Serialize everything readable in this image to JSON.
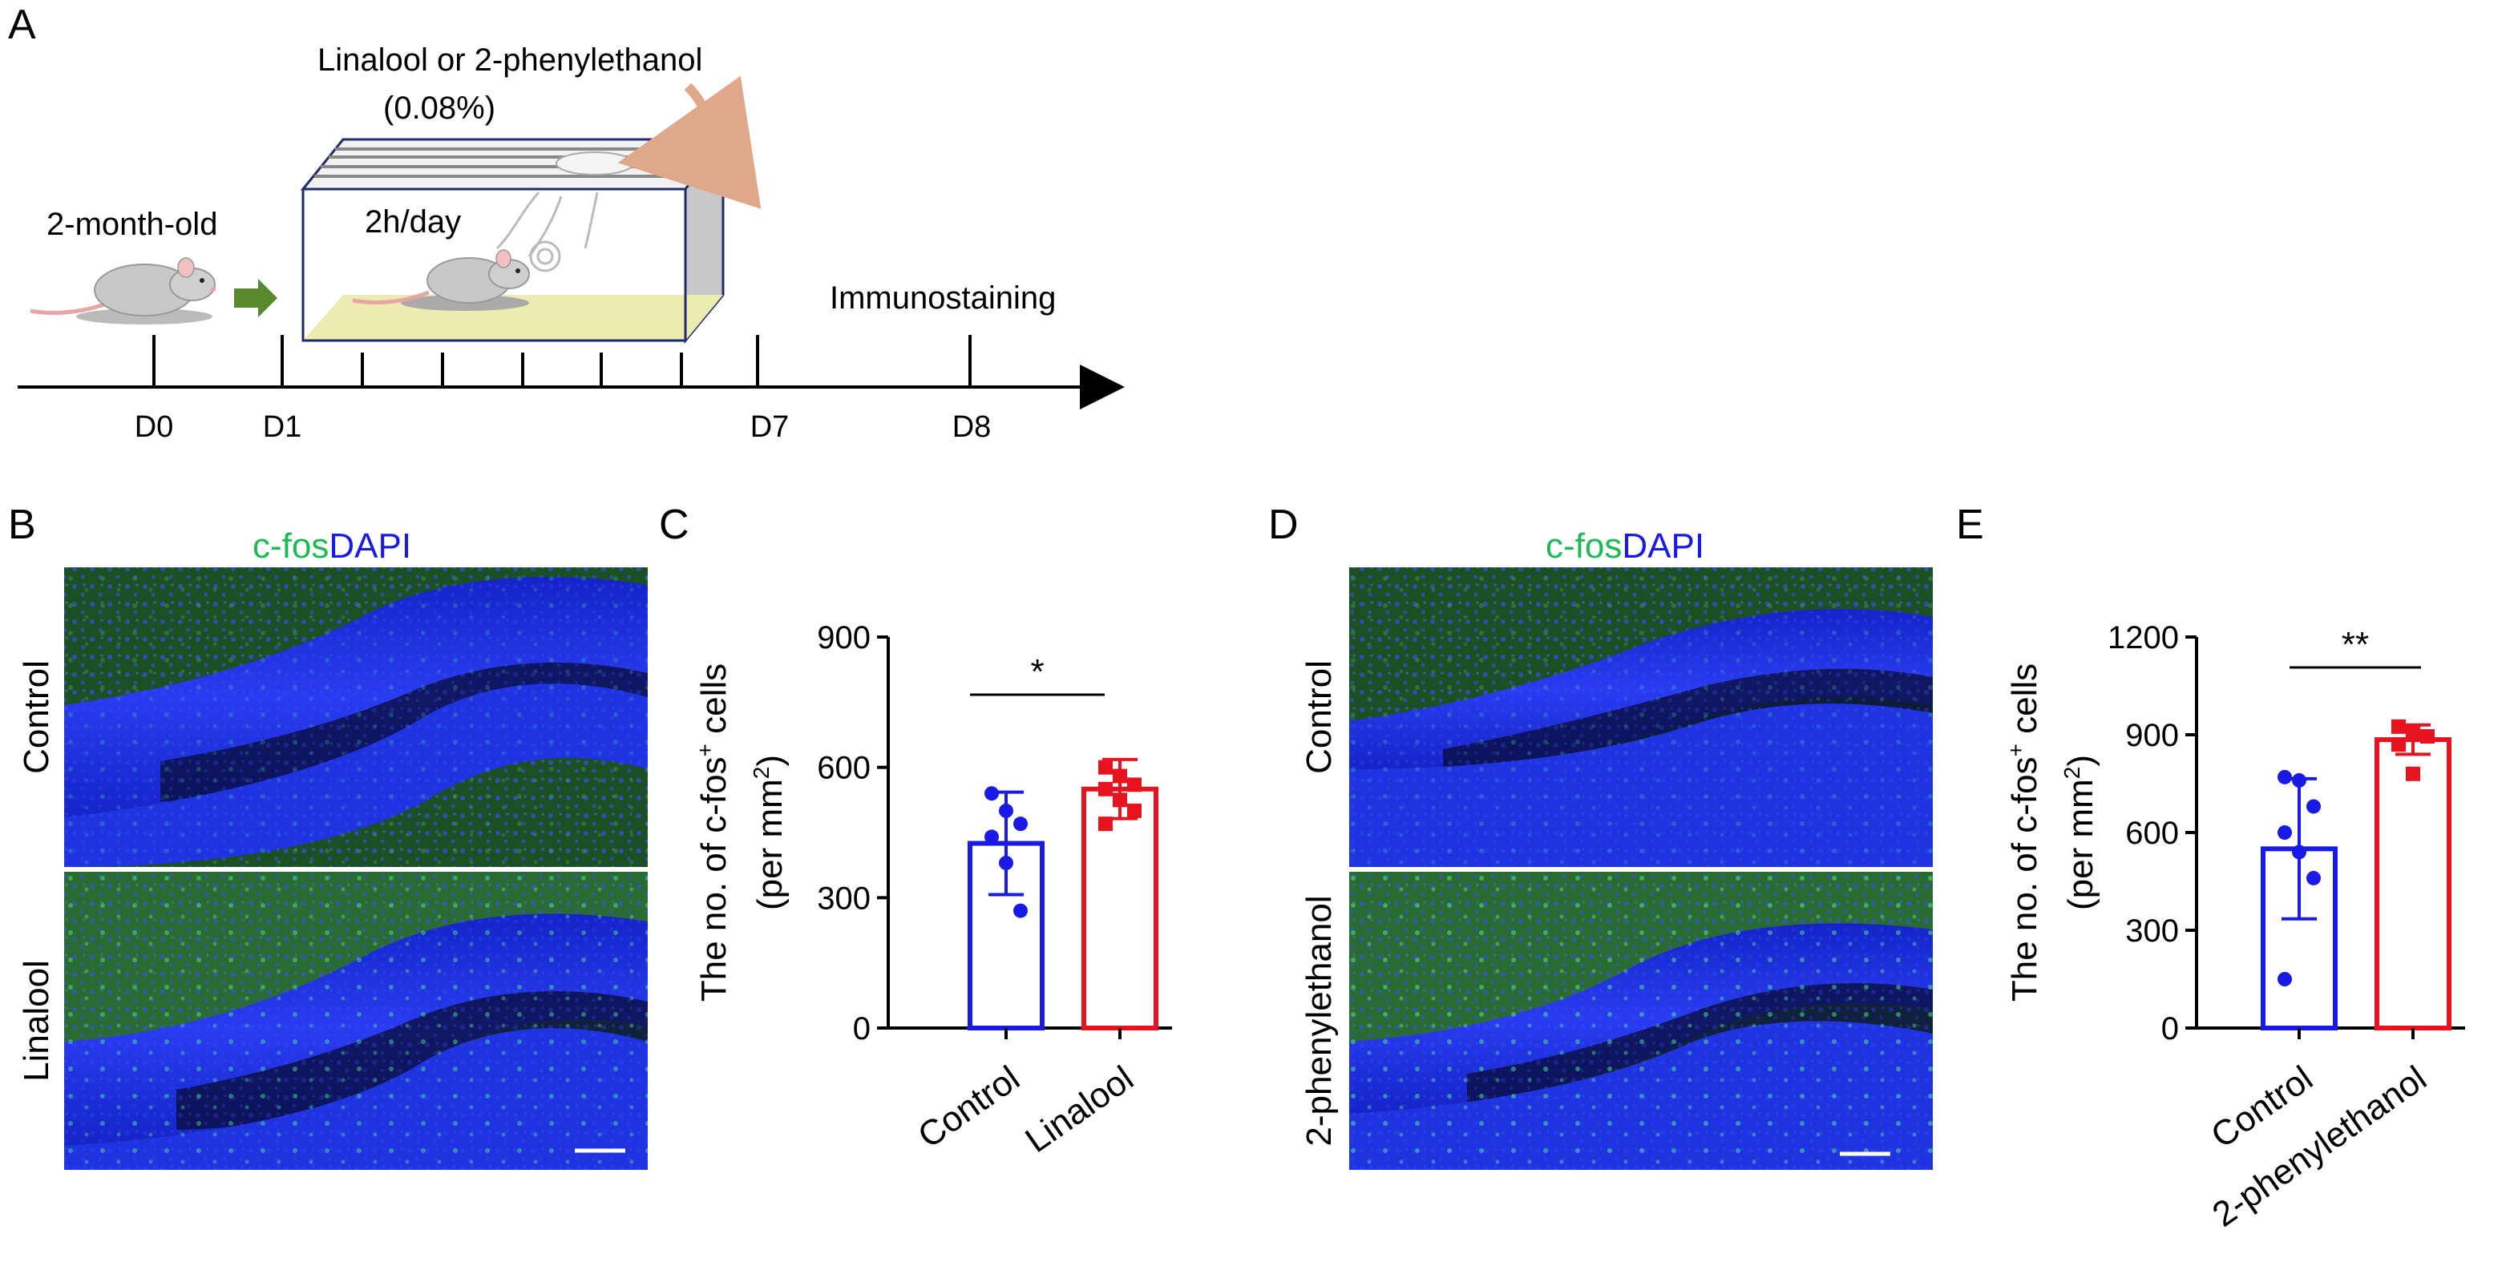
{
  "panels": {
    "A": {
      "letter": "A",
      "odor_label": "Linalool or 2-phenylethanol",
      "concentration": "(0.08%)",
      "age_label": "2-month-old",
      "duration_label": "2h/day",
      "endpoint_label": "Immunostaining",
      "days": [
        "D0",
        "D1",
        "D7",
        "D8"
      ]
    },
    "B": {
      "letter": "B",
      "stain_green": "c-fos",
      "stain_blue": "DAPI",
      "row_labels": [
        "Control",
        "Linalool"
      ]
    },
    "D": {
      "letter": "D",
      "stain_green": "c-fos",
      "stain_blue": "DAPI",
      "row_labels": [
        "Control",
        "2-phenylethanol"
      ]
    },
    "C": {
      "letter": "C"
    },
    "E": {
      "letter": "E"
    }
  },
  "colors": {
    "control": "#1a1ae6",
    "treatment": "#e6141e",
    "cfos": "#1db954",
    "dapi": "#1a1ae6",
    "arrow": "#5a8a2e",
    "cage_floor": "#ecebb0"
  },
  "chart_data": [
    {
      "panel": "C",
      "type": "bar",
      "categories": [
        "Control",
        "Linalool"
      ],
      "values": [
        425,
        550
      ],
      "error": [
        118,
        68
      ],
      "points": [
        [
          540,
          500,
          470,
          440,
          380,
          270
        ],
        [
          600,
          580,
          560,
          550,
          525,
          500,
          470
        ]
      ],
      "ylabel_line1": "The no. of c-fos",
      "ylabel_sup": "+",
      "ylabel_line1_end": " cells",
      "ylabel_line2": "(per mm",
      "ylabel_line2_sup": "2",
      "ylabel_line2_end": ")",
      "ylim": [
        0,
        900
      ],
      "yticks": [
        "0",
        "300",
        "600",
        "900"
      ],
      "significance": "*"
    },
    {
      "panel": "E",
      "type": "bar",
      "categories": [
        "Control",
        "2-phenylethanol"
      ],
      "values": [
        550,
        885
      ],
      "error": [
        215,
        45
      ],
      "points": [
        [
          770,
          760,
          680,
          600,
          540,
          460,
          150
        ],
        [
          925,
          910,
          895,
          870,
          780
        ]
      ],
      "ylabel_line1": "The no. of c-fos",
      "ylabel_sup": "+",
      "ylabel_line1_end": " cells",
      "ylabel_line2": "(per mm",
      "ylabel_line2_sup": "2",
      "ylabel_line2_end": ")",
      "ylim": [
        0,
        1200
      ],
      "yticks": [
        "0",
        "300",
        "600",
        "900",
        "1200"
      ],
      "significance": "**"
    }
  ]
}
